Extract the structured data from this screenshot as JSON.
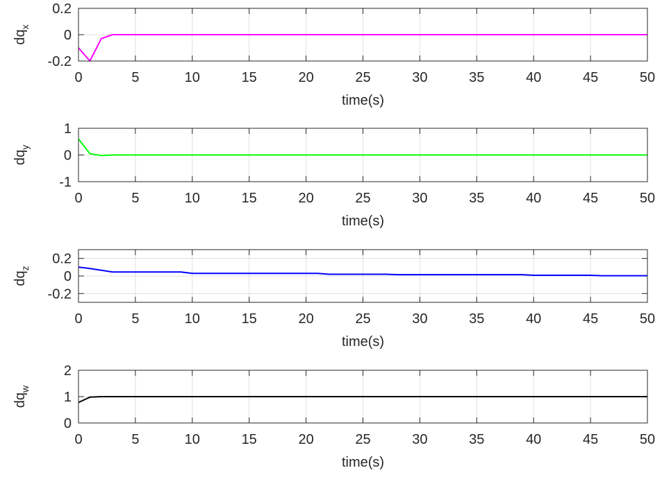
{
  "chart_data": [
    {
      "type": "line",
      "xlabel": "time(s)",
      "ylabel_main": "dq",
      "ylabel_sub": "x",
      "xlim": [
        0,
        50
      ],
      "ylim": [
        -0.2,
        0.2
      ],
      "xticks": [
        "0",
        "5",
        "10",
        "15",
        "20",
        "25",
        "30",
        "35",
        "40",
        "45",
        "50"
      ],
      "yticks": [
        "-0.2",
        "0",
        "0.2"
      ],
      "grid": true,
      "color": "#ff00ff",
      "x": [
        0,
        1,
        2,
        3,
        10,
        20,
        30,
        40,
        50
      ],
      "y": [
        -0.1,
        -0.2,
        -0.03,
        0.0,
        0.0,
        0.0,
        0.0,
        0.0,
        0.0
      ]
    },
    {
      "type": "line",
      "xlabel": "time(s)",
      "ylabel_main": "dq",
      "ylabel_sub": "y",
      "xlim": [
        0,
        50
      ],
      "ylim": [
        -1,
        1
      ],
      "xticks": [
        "0",
        "5",
        "10",
        "15",
        "20",
        "25",
        "30",
        "35",
        "40",
        "45",
        "50"
      ],
      "yticks": [
        "-1",
        "0",
        "1"
      ],
      "grid": true,
      "color": "#00ff00",
      "x": [
        0,
        1,
        2,
        3,
        10,
        20,
        30,
        40,
        50
      ],
      "y": [
        0.6,
        0.05,
        -0.02,
        0.0,
        0.0,
        0.0,
        0.0,
        0.0,
        0.0
      ]
    },
    {
      "type": "line",
      "xlabel": "time(s)",
      "ylabel_main": "dq",
      "ylabel_sub": "z",
      "xlim": [
        0,
        50
      ],
      "ylim": [
        -0.3,
        0.3
      ],
      "xticks": [
        "0",
        "5",
        "10",
        "15",
        "20",
        "25",
        "30",
        "35",
        "40",
        "45",
        "50"
      ],
      "yticks": [
        "-0.2",
        "0",
        "0.2"
      ],
      "ytick_values": [
        -0.2,
        0,
        0.2
      ],
      "grid": true,
      "color": "#0000ff",
      "x": [
        0,
        1,
        2,
        3,
        9,
        10,
        21,
        22,
        27,
        28,
        39,
        40,
        45,
        46,
        50
      ],
      "y": [
        0.1,
        0.085,
        0.065,
        0.045,
        0.045,
        0.03,
        0.03,
        0.02,
        0.02,
        0.015,
        0.015,
        0.008,
        0.008,
        0.003,
        0.003
      ]
    },
    {
      "type": "line",
      "xlabel": "time(s)",
      "ylabel_main": "dq",
      "ylabel_sub": "w",
      "xlim": [
        0,
        50
      ],
      "ylim": [
        0,
        2
      ],
      "xticks": [
        "0",
        "5",
        "10",
        "15",
        "20",
        "25",
        "30",
        "35",
        "40",
        "45",
        "50"
      ],
      "yticks": [
        "0",
        "1",
        "2"
      ],
      "grid": true,
      "color": "#000000",
      "x": [
        0,
        1,
        2,
        3,
        10,
        20,
        30,
        40,
        50
      ],
      "y": [
        0.78,
        0.98,
        1.0,
        1.0,
        1.0,
        1.0,
        1.0,
        1.0,
        1.0
      ]
    }
  ]
}
